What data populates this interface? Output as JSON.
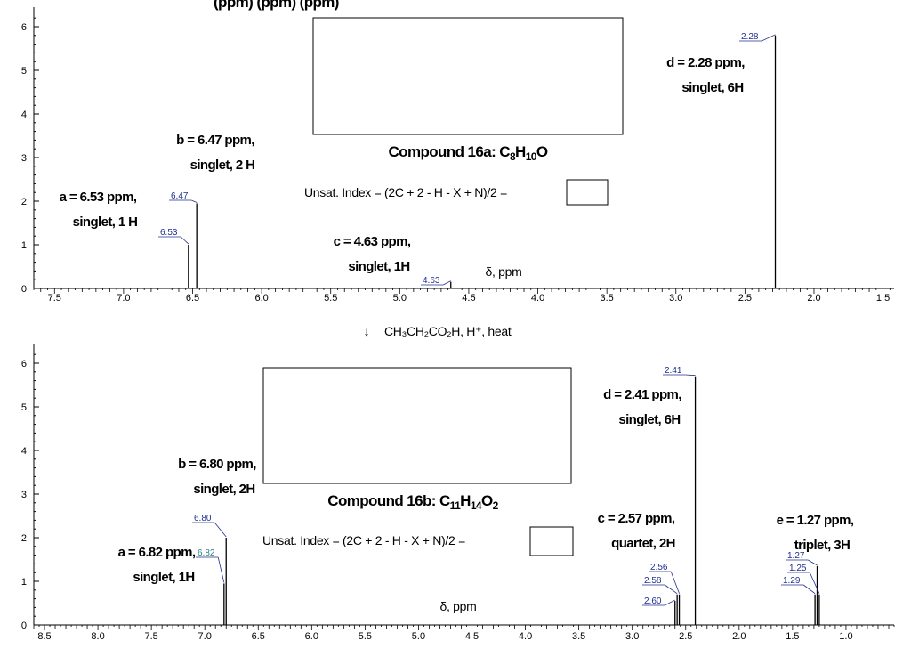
{
  "header_fragment": "(ppm)                                                    (ppm)  (ppm)",
  "arrow": "↓",
  "reaction": "CH₃CH₂CO₂H, H⁺, heat",
  "chart_data": [
    {
      "type": "nmr_spectrum",
      "compound": {
        "prefix": "Compound 16a: ",
        "formula": [
          [
            "C",
            ""
          ],
          [
            "8",
            "sub"
          ],
          [
            "H",
            ""
          ],
          [
            "10",
            "sub"
          ],
          [
            "O",
            ""
          ]
        ]
      },
      "unsat_text": "Unsat. Index = (2C + 2 - H - X + N)/2 =",
      "xlabel": "δ, ppm",
      "xlim": [
        7.65,
        1.42
      ],
      "ylim": [
        0,
        6.5
      ],
      "x_ticks": [
        "7.5",
        "7.0",
        "6.5",
        "6.0",
        "5.5",
        "5.0",
        "4.5",
        "4.0",
        "3.5",
        "3.0",
        "2.5",
        "2.0",
        "1.5"
      ],
      "y_ticks": [
        "0",
        "1",
        "2",
        "3",
        "4",
        "5",
        "6"
      ],
      "peaks": [
        {
          "ppm": 6.53,
          "height": 1.0,
          "label": "6.53"
        },
        {
          "ppm": 6.47,
          "height": 1.95,
          "label": "6.47"
        },
        {
          "ppm": 4.63,
          "height": 0.15,
          "label": "4.63"
        },
        {
          "ppm": 2.28,
          "height": 5.8,
          "label": "2.28"
        }
      ],
      "annotations": [
        {
          "line1": "a = 6.53 ppm,",
          "line2": "singlet, 1 H"
        },
        {
          "line1": "b = 6.47 ppm,",
          "line2": "singlet, 2 H"
        },
        {
          "line1": "c = 4.63 ppm,",
          "line2": "singlet, 1H"
        },
        {
          "line1": "d = 2.28 ppm,",
          "line2": "singlet, 6H"
        }
      ]
    },
    {
      "type": "nmr_spectrum",
      "compound": {
        "prefix": "Compound 16b: ",
        "formula": [
          [
            "C",
            ""
          ],
          [
            "11",
            "sub"
          ],
          [
            "H",
            ""
          ],
          [
            "14",
            "sub"
          ],
          [
            "O",
            ""
          ],
          [
            "2",
            "sub"
          ]
        ]
      },
      "unsat_text": "Unsat. Index = (2C + 2 - H - X + N)/2 =",
      "xlabel": "δ, ppm",
      "xlim": [
        8.6,
        0.55
      ],
      "ylim": [
        0,
        6.5
      ],
      "x_ticks": [
        "8.5",
        "8.0",
        "7.5",
        "7.0",
        "6.5",
        "6.0",
        "5.5",
        "5.0",
        "4.5",
        "4.0",
        "3.5",
        "3.0",
        "2.5",
        "2.0",
        "1.5",
        "1.0"
      ],
      "y_ticks": [
        "0",
        "1",
        "2",
        "3",
        "4",
        "5",
        "6"
      ],
      "peaks": [
        {
          "ppm": 6.82,
          "height": 0.95,
          "label": "6.82"
        },
        {
          "ppm": 6.8,
          "height": 2.0,
          "label": "6.80"
        },
        {
          "ppm": 2.6,
          "height": 0.55,
          "label": "2.60"
        },
        {
          "ppm": 2.58,
          "height": 0.7,
          "label": "2.58"
        },
        {
          "ppm": 2.56,
          "height": 0.7,
          "label": "2.56"
        },
        {
          "ppm": 2.41,
          "height": 5.7,
          "label": "2.41"
        },
        {
          "ppm": 1.29,
          "height": 0.7,
          "label": "1.29"
        },
        {
          "ppm": 1.27,
          "height": 1.35,
          "label": "1.27"
        },
        {
          "ppm": 1.25,
          "height": 0.7,
          "label": "1.25"
        }
      ],
      "annotations": [
        {
          "line1": "a = 6.82 ppm,",
          "line2": "singlet, 1H"
        },
        {
          "line1": "b = 6.80 ppm,",
          "line2": "singlet, 2H"
        },
        {
          "line1": "c = 2.57 ppm,",
          "line2": "quartet, 2H"
        },
        {
          "line1": "d = 2.41 ppm,",
          "line2": "singlet, 6H"
        },
        {
          "line1": "e = 1.27 ppm,",
          "line2": "triplet, 3H"
        }
      ]
    }
  ]
}
